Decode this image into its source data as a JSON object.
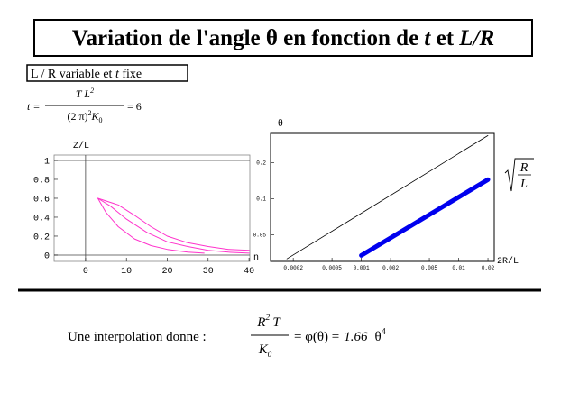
{
  "title": [
    "Variation de l'angle θ en fonction de ",
    "t",
    " et ",
    "L/R"
  ],
  "subtitle": [
    "L / R variable et ",
    "t",
    " fixe"
  ],
  "formula": {
    "lhs": "t =",
    "numerator": "T L",
    "num_exp": "2",
    "denominator": "(2 π)",
    "den_exp": "2",
    "den_k": "K",
    "den_sub": "0",
    "rhs": "= 6"
  },
  "interpolation": {
    "label": "Une interpolation donne :",
    "numerator": "R",
    "num_exp": "2",
    "num_rest": "T",
    "denominator": "K",
    "den_sub": "0",
    "equation": "= φ(θ) =",
    "coefficient": 1.66,
    "variable": "θ",
    "exponent": 4
  },
  "chart_data": [
    {
      "type": "line",
      "y_label": "Z/L",
      "x_label": "n",
      "xlim": [
        -7.7,
        40.2
      ],
      "ylim": [
        -0.067,
        1.057
      ],
      "xticks": [
        0,
        10,
        20,
        30,
        40
      ],
      "yticks": [
        0,
        0.2,
        0.4,
        0.6,
        0.8,
        1
      ],
      "reference_line": 1,
      "series": [
        {
          "color": "#ff33cc",
          "x": [
            3,
            5,
            8,
            12,
            16,
            20,
            25,
            29
          ],
          "values": [
            0.6,
            0.45,
            0.3,
            0.17,
            0.1,
            0.06,
            0.03,
            0.02
          ]
        },
        {
          "color": "#ff33cc",
          "x": [
            3,
            6,
            10,
            15,
            20,
            25,
            30,
            35,
            40
          ],
          "values": [
            0.6,
            0.52,
            0.38,
            0.24,
            0.14,
            0.09,
            0.05,
            0.03,
            0.02
          ]
        },
        {
          "color": "#ff33cc",
          "x": [
            3,
            8,
            12,
            16,
            20,
            25,
            30,
            35,
            40
          ],
          "values": [
            0.6,
            0.53,
            0.42,
            0.3,
            0.2,
            0.13,
            0.09,
            0.06,
            0.05
          ]
        }
      ]
    },
    {
      "type": "line",
      "y_label": "θ",
      "x_label": "2R/L",
      "xlog": true,
      "ylog": true,
      "xlim": [
        0.000117,
        0.0232
      ],
      "ylim": [
        0.03,
        0.35
      ],
      "xticks": [
        0.0002,
        0.0005,
        0.001,
        0.002,
        0.005,
        0.01,
        0.02
      ],
      "yticks": [
        0.05,
        0.1,
        0.2
      ],
      "annotation": {
        "numerator": "R",
        "denominator": "L"
      },
      "series": [
        {
          "color": "#000000",
          "width": 0.8,
          "x": [
            0.000172,
            0.02
          ],
          "values": [
            0.0315,
            0.336
          ]
        },
        {
          "color": "#0000ee",
          "width": 5,
          "x": [
            0.001,
            0.02
          ],
          "values": [
            0.0336,
            0.144
          ]
        }
      ]
    }
  ]
}
